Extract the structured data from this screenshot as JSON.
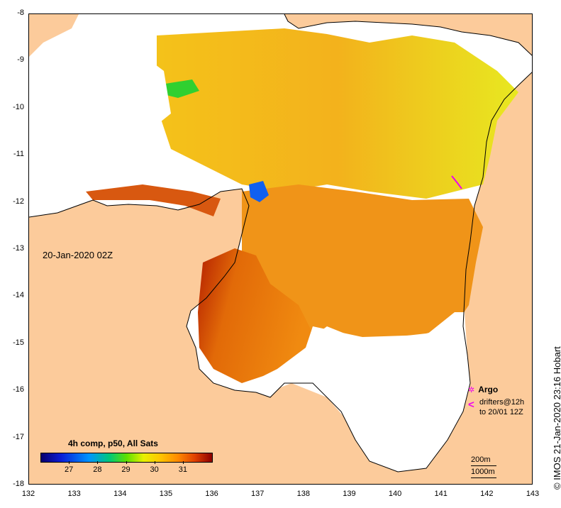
{
  "map": {
    "date_label": "20-Jan-2020 02Z",
    "credit": "© IMOS 21-Jan-2020 23:16 Hobart",
    "x_ticks": [
      "132",
      "133",
      "134",
      "135",
      "136",
      "137",
      "138",
      "139",
      "140",
      "141",
      "142",
      "143"
    ],
    "y_ticks": [
      "-8",
      "-9",
      "-10",
      "-11",
      "-12",
      "-13",
      "-14",
      "-15",
      "-16",
      "-17",
      "-18"
    ],
    "x_range": [
      132,
      143
    ],
    "y_range": [
      -8,
      -18
    ],
    "colors": {
      "land": "#fccb9b",
      "no_data": "#ffffff",
      "coastline": "#000000"
    }
  },
  "legend": {
    "argo_label": "Argo",
    "argo_glyph": "✲",
    "drifters_glyph": "<",
    "drifters_line1": "drifters@12h",
    "drifters_line2": "to 20/01 12Z",
    "contour_200": "200m",
    "contour_1000": "1000m"
  },
  "colorbar": {
    "title": "4h comp, p50, All Sats",
    "tick_labels": [
      "27",
      "28",
      "29",
      "30",
      "31"
    ],
    "range": [
      26,
      32
    ],
    "tick_values": [
      27,
      28,
      29,
      30,
      31
    ]
  }
}
